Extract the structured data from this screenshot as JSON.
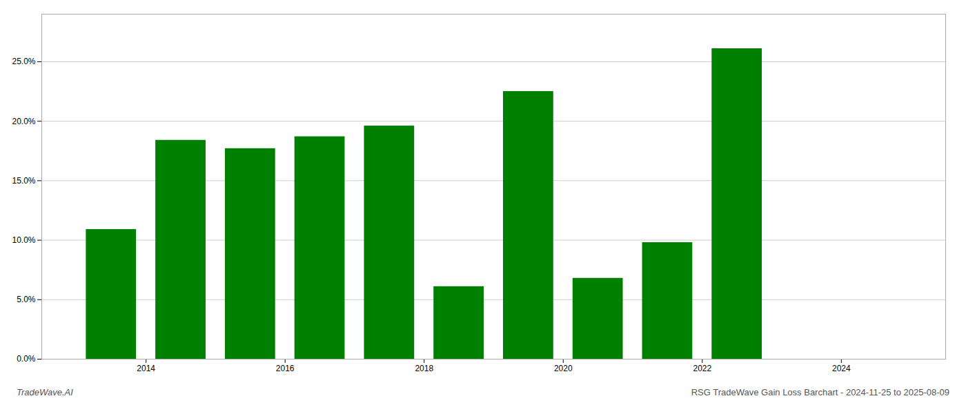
{
  "chart_data": {
    "type": "bar",
    "title": "RSG TradeWave Gain Loss Barchart - 2024-11-25 to 2025-08-09",
    "annotations": [
      "TradeWave.AI"
    ],
    "x": [
      2013.5,
      2014.5,
      2015.5,
      2016.5,
      2017.5,
      2018.5,
      2019.5,
      2020.5,
      2021.5,
      2022.5
    ],
    "values": [
      0.109,
      0.184,
      0.177,
      0.187,
      0.196,
      0.061,
      0.225,
      0.068,
      0.098,
      0.261
    ],
    "color": "#008000",
    "xlim": [
      2012.5,
      2025.5
    ],
    "xticks": [
      2014,
      2016,
      2018,
      2020,
      2022,
      2024
    ],
    "ylim": [
      0,
      0.29
    ],
    "yticks": [
      {
        "value": 0.0,
        "label": "0.0%"
      },
      {
        "value": 0.05,
        "label": "5.0%"
      },
      {
        "value": 0.1,
        "label": "10.0%"
      },
      {
        "value": 0.15,
        "label": "15.0%"
      },
      {
        "value": 0.2,
        "label": "20.0%"
      },
      {
        "value": 0.25,
        "label": "25.0%"
      }
    ],
    "grid": true
  }
}
